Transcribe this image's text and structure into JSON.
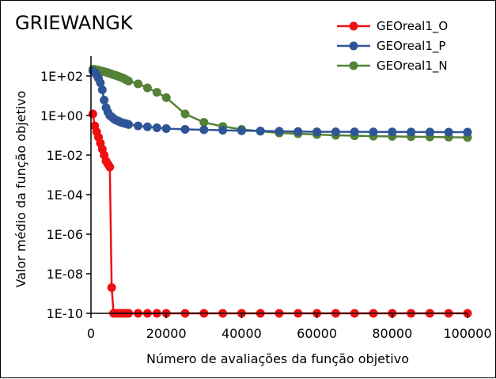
{
  "chart_data": {
    "type": "line",
    "title": "GRIEWANGK",
    "xlabel": "Número de avaliações da função objetivo",
    "ylabel": "Valor médio da função objetivo",
    "xlim": [
      0,
      100000
    ],
    "ylim": [
      1e-10,
      1000
    ],
    "y_scale": "log",
    "grid": false,
    "legend_position": "top-right",
    "x_ticks": [
      0,
      20000,
      40000,
      60000,
      80000,
      100000
    ],
    "x_tick_labels": [
      "0",
      "20000",
      "40000",
      "60000",
      "80000",
      "100000"
    ],
    "y_ticks": [
      1e-10,
      1e-08,
      1e-06,
      0.0001,
      0.01,
      1,
      100
    ],
    "y_tick_labels": [
      "1E-10",
      "1E-08",
      "1E-06",
      "1E-04",
      "1E-02",
      "1E+00",
      "1E+02"
    ],
    "series": [
      {
        "name": "GEOreal1_O",
        "color": "#ee1111",
        "x": [
          500,
          1000,
          1500,
          2000,
          2500,
          3000,
          3500,
          4000,
          4500,
          5000,
          5500,
          6000,
          6500,
          7000,
          7500,
          8000,
          8500,
          9000,
          9500,
          10000,
          12500,
          15000,
          17500,
          20000,
          25000,
          30000,
          35000,
          40000,
          45000,
          50000,
          55000,
          60000,
          65000,
          70000,
          75000,
          80000,
          85000,
          90000,
          95000,
          100000
        ],
        "y": [
          1.2,
          0.3,
          0.15,
          0.08,
          0.04,
          0.02,
          0.01,
          0.005,
          0.0035,
          0.0025,
          2e-09,
          1e-10,
          1e-10,
          1e-10,
          1e-10,
          1e-10,
          1e-10,
          1e-10,
          1e-10,
          1e-10,
          1e-10,
          1e-10,
          1e-10,
          1e-10,
          1e-10,
          1e-10,
          1e-10,
          1e-10,
          1e-10,
          1e-10,
          1e-10,
          1e-10,
          1e-10,
          1e-10,
          1e-10,
          1e-10,
          1e-10,
          1e-10,
          1e-10,
          1e-10
        ]
      },
      {
        "name": "GEOreal1_P",
        "color": "#2e5597",
        "x": [
          500,
          1000,
          1500,
          2000,
          2500,
          3000,
          3500,
          4000,
          4500,
          5000,
          5500,
          6000,
          6500,
          7000,
          7500,
          8000,
          8500,
          9000,
          9500,
          10000,
          12500,
          15000,
          17500,
          20000,
          25000,
          30000,
          35000,
          40000,
          45000,
          50000,
          55000,
          60000,
          65000,
          70000,
          75000,
          80000,
          85000,
          90000,
          95000,
          100000
        ],
        "y": [
          180,
          150,
          110,
          75,
          45,
          20,
          6,
          2.5,
          1.5,
          1.0,
          0.85,
          0.7,
          0.6,
          0.55,
          0.5,
          0.45,
          0.42,
          0.4,
          0.38,
          0.35,
          0.3,
          0.27,
          0.24,
          0.22,
          0.2,
          0.19,
          0.18,
          0.17,
          0.165,
          0.16,
          0.155,
          0.15,
          0.15,
          0.15,
          0.148,
          0.148,
          0.147,
          0.146,
          0.145,
          0.145
        ]
      },
      {
        "name": "GEOreal1_N",
        "color": "#538135",
        "x": [
          500,
          1000,
          1500,
          2000,
          2500,
          3000,
          3500,
          4000,
          4500,
          5000,
          5500,
          6000,
          6500,
          7000,
          7500,
          8000,
          8500,
          9000,
          9500,
          10000,
          12500,
          15000,
          17500,
          20000,
          25000,
          30000,
          35000,
          40000,
          45000,
          50000,
          55000,
          60000,
          65000,
          70000,
          75000,
          80000,
          85000,
          90000,
          95000,
          100000
        ],
        "y": [
          220,
          215,
          205,
          195,
          185,
          175,
          165,
          155,
          145,
          135,
          125,
          115,
          108,
          100,
          92,
          85,
          78,
          70,
          62,
          55,
          40,
          25,
          15,
          8,
          1.2,
          0.45,
          0.28,
          0.2,
          0.16,
          0.13,
          0.12,
          0.11,
          0.1,
          0.095,
          0.09,
          0.088,
          0.085,
          0.082,
          0.08,
          0.078
        ]
      }
    ]
  }
}
